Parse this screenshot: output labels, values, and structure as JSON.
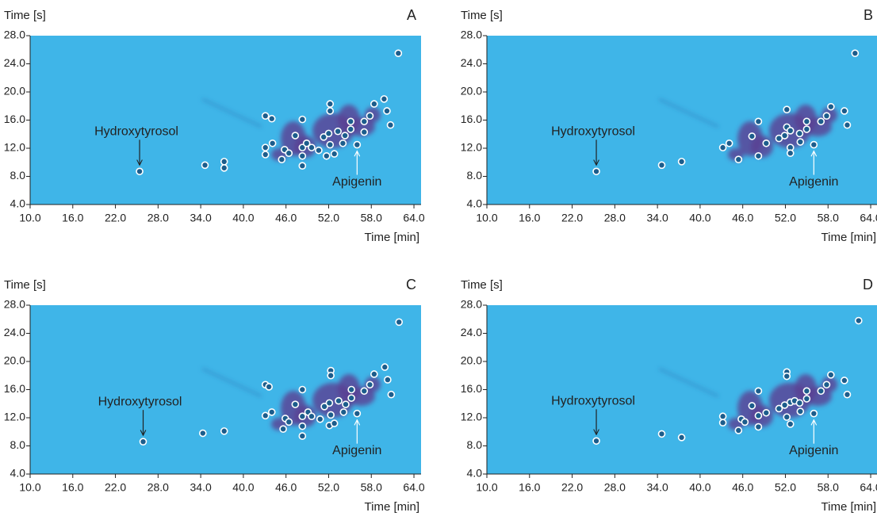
{
  "chart_data": [
    {
      "type": "scatter",
      "title": "A",
      "xlabel": "Time [min]",
      "ylabel": "Time [s]",
      "color": "#ffffff",
      "xlim": [
        10,
        65
      ],
      "ylim": [
        4,
        28
      ],
      "xticks": [
        {
          "value": 10,
          "label": "10.0"
        },
        {
          "value": 16,
          "label": "16.0"
        },
        {
          "value": 22,
          "label": "22.0"
        },
        {
          "value": 28,
          "label": "28.0"
        },
        {
          "value": 34,
          "label": "34.0"
        },
        {
          "value": 40,
          "label": "40.0"
        },
        {
          "value": 46,
          "label": "46.0"
        },
        {
          "value": 52,
          "label": "52.0"
        },
        {
          "value": 58,
          "label": "58.0"
        },
        {
          "value": 64,
          "label": "64.0"
        }
      ],
      "yticks": [
        {
          "value": 4,
          "label": "4.0"
        },
        {
          "value": 8,
          "label": "8.0"
        },
        {
          "value": 12,
          "label": "12.0"
        },
        {
          "value": 16,
          "label": "16.0"
        },
        {
          "value": 20,
          "label": "20.0"
        },
        {
          "value": 24,
          "label": "24.0"
        },
        {
          "value": 28,
          "label": "28.0"
        }
      ],
      "x": [
        25.4,
        34.6,
        37.3,
        37.3,
        43.1,
        44.0,
        43.1,
        43.1,
        44.1,
        45.4,
        45.8,
        46.4,
        47.3,
        48.3,
        48.3,
        48.3,
        48.3,
        48.9,
        49.6,
        50.6,
        51.3,
        52.0,
        52.2,
        52.2,
        51.7,
        52.2,
        52.8,
        53.3,
        54.0,
        54.3,
        55.1,
        55.1,
        56.0,
        57.0,
        57.0,
        57.8,
        58.4,
        59.8,
        60.2,
        60.7,
        61.8
      ],
      "y": [
        8.7,
        9.6,
        10.1,
        9.2,
        16.6,
        16.2,
        12.1,
        11.1,
        12.7,
        10.4,
        11.8,
        11.3,
        13.8,
        16.1,
        12.1,
        10.9,
        9.5,
        12.7,
        12.1,
        11.7,
        13.6,
        14.1,
        18.3,
        17.3,
        10.9,
        12.5,
        11.2,
        14.4,
        12.7,
        13.8,
        15.8,
        14.7,
        12.5,
        14.3,
        15.8,
        16.6,
        18.3,
        19.0,
        17.3,
        15.3,
        25.5
      ],
      "annotations": [
        {
          "text": "Hydroxytyrosol",
          "x": 25.4,
          "y": 8.7
        },
        {
          "text": "Apigenin",
          "x": 56.0,
          "y": 12.5
        }
      ]
    },
    {
      "type": "scatter",
      "title": "B",
      "xlabel": "Time [min]",
      "ylabel": "Time [s]",
      "color": "#ffffff",
      "xlim": [
        10,
        65
      ],
      "ylim": [
        4,
        28
      ],
      "xticks": [
        {
          "value": 10,
          "label": "10.0"
        },
        {
          "value": 16,
          "label": "16.0"
        },
        {
          "value": 22,
          "label": "22.0"
        },
        {
          "value": 28,
          "label": "28.0"
        },
        {
          "value": 34,
          "label": "34.0"
        },
        {
          "value": 40,
          "label": "40.0"
        },
        {
          "value": 46,
          "label": "46.0"
        },
        {
          "value": 52,
          "label": "52.0"
        },
        {
          "value": 58,
          "label": "58.0"
        },
        {
          "value": 64,
          "label": "64.0"
        }
      ],
      "yticks": [
        {
          "value": 4,
          "label": "4.0"
        },
        {
          "value": 8,
          "label": "8.0"
        },
        {
          "value": 12,
          "label": "12.0"
        },
        {
          "value": 16,
          "label": "16.0"
        },
        {
          "value": 20,
          "label": "20.0"
        },
        {
          "value": 24,
          "label": "24.0"
        },
        {
          "value": 28,
          "label": "28.0"
        }
      ],
      "x": [
        25.4,
        34.6,
        37.4,
        43.2,
        44.1,
        45.4,
        47.3,
        48.2,
        48.2,
        49.3,
        51.1,
        51.9,
        52.2,
        52.2,
        52.7,
        52.7,
        52.7,
        54.0,
        54.1,
        55.0,
        55.0,
        56.0,
        57.0,
        57.8,
        58.4,
        60.3,
        60.7,
        61.8
      ],
      "y": [
        8.7,
        9.6,
        10.1,
        12.1,
        12.7,
        10.4,
        13.7,
        15.8,
        10.9,
        12.7,
        13.4,
        13.8,
        17.5,
        15.0,
        14.5,
        12.1,
        11.3,
        14.1,
        12.9,
        14.7,
        15.8,
        12.5,
        15.8,
        16.6,
        17.9,
        17.3,
        15.3,
        25.5
      ],
      "annotations": [
        {
          "text": "Hydroxytyrosol",
          "x": 25.4,
          "y": 8.7
        },
        {
          "text": "Apigenin",
          "x": 56.0,
          "y": 12.5
        }
      ]
    },
    {
      "type": "scatter",
      "title": "C",
      "xlabel": "Time [min]",
      "ylabel": "Time [s]",
      "color": "#ffffff",
      "xlim": [
        10,
        65
      ],
      "ylim": [
        4,
        28
      ],
      "xticks": [
        {
          "value": 10,
          "label": "10.0"
        },
        {
          "value": 16,
          "label": "16.0"
        },
        {
          "value": 22,
          "label": "22.0"
        },
        {
          "value": 28,
          "label": "28.0"
        },
        {
          "value": 34,
          "label": "34.0"
        },
        {
          "value": 40,
          "label": "40.0"
        },
        {
          "value": 46,
          "label": "46.0"
        },
        {
          "value": 52,
          "label": "52.0"
        },
        {
          "value": 58,
          "label": "58.0"
        },
        {
          "value": 64,
          "label": "64.0"
        }
      ],
      "yticks": [
        {
          "value": 4,
          "label": "4.0"
        },
        {
          "value": 8,
          "label": "8.0"
        },
        {
          "value": 12,
          "label": "12.0"
        },
        {
          "value": 16,
          "label": "16.0"
        },
        {
          "value": 20,
          "label": "20.0"
        },
        {
          "value": 24,
          "label": "24.0"
        },
        {
          "value": 28,
          "label": "28.0"
        }
      ],
      "x": [
        25.9,
        34.3,
        37.3,
        43.1,
        43.6,
        43.1,
        44.0,
        45.6,
        45.9,
        46.4,
        47.3,
        48.3,
        48.3,
        48.3,
        48.3,
        49.1,
        49.6,
        50.8,
        51.4,
        52.1,
        52.3,
        52.3,
        52.1,
        52.3,
        52.8,
        53.4,
        54.1,
        54.4,
        55.2,
        55.2,
        56.0,
        57.0,
        57.8,
        58.4,
        59.9,
        60.3,
        60.8,
        61.9
      ],
      "y": [
        8.6,
        9.8,
        10.1,
        16.7,
        16.4,
        12.3,
        12.8,
        10.4,
        11.9,
        11.4,
        13.9,
        16.0,
        12.2,
        10.8,
        9.4,
        12.8,
        12.2,
        11.8,
        13.6,
        14.1,
        18.7,
        18.0,
        10.9,
        12.4,
        11.2,
        14.4,
        12.8,
        13.9,
        16.0,
        14.8,
        12.6,
        15.8,
        16.7,
        18.2,
        19.2,
        17.4,
        15.3,
        25.6
      ],
      "annotations": [
        {
          "text": "Hydroxytyrosol",
          "x": 25.9,
          "y": 8.6
        },
        {
          "text": "Apigenin",
          "x": 56.0,
          "y": 12.6
        }
      ]
    },
    {
      "type": "scatter",
      "title": "D",
      "xlabel": "Time [min]",
      "ylabel": "Time [s]",
      "color": "#ffffff",
      "xlim": [
        10,
        65
      ],
      "ylim": [
        4,
        28
      ],
      "xticks": [
        {
          "value": 10,
          "label": "10.0"
        },
        {
          "value": 16,
          "label": "16.0"
        },
        {
          "value": 22,
          "label": "22.0"
        },
        {
          "value": 28,
          "label": "28.0"
        },
        {
          "value": 34,
          "label": "34.0"
        },
        {
          "value": 40,
          "label": "40.0"
        },
        {
          "value": 46,
          "label": "46.0"
        },
        {
          "value": 52,
          "label": "52.0"
        },
        {
          "value": 58,
          "label": "58.0"
        },
        {
          "value": 64,
          "label": "64.0"
        }
      ],
      "yticks": [
        {
          "value": 4,
          "label": "4.0"
        },
        {
          "value": 8,
          "label": "8.0"
        },
        {
          "value": 12,
          "label": "12.0"
        },
        {
          "value": 16,
          "label": "16.0"
        },
        {
          "value": 20,
          "label": "20.0"
        },
        {
          "value": 24,
          "label": "24.0"
        },
        {
          "value": 28,
          "label": "28.0"
        }
      ],
      "x": [
        25.4,
        34.6,
        37.4,
        43.2,
        43.2,
        45.4,
        45.8,
        46.3,
        47.3,
        48.2,
        48.2,
        48.2,
        49.3,
        51.1,
        51.9,
        52.2,
        52.2,
        52.2,
        52.7,
        52.7,
        53.3,
        54.0,
        54.1,
        55.0,
        55.0,
        56.0,
        57.0,
        57.8,
        58.4,
        60.3,
        60.7,
        62.3
      ],
      "y": [
        8.7,
        9.7,
        9.2,
        12.2,
        11.3,
        10.2,
        11.8,
        11.4,
        13.7,
        15.8,
        12.3,
        10.7,
        12.7,
        13.3,
        13.8,
        18.5,
        17.9,
        12.1,
        14.2,
        11.1,
        14.4,
        14.1,
        12.9,
        14.7,
        15.8,
        12.6,
        15.8,
        16.7,
        18.1,
        17.3,
        15.3,
        25.8
      ],
      "annotations": [
        {
          "text": "Hydroxytyrosol",
          "x": 25.4,
          "y": 8.7
        },
        {
          "text": "Apigenin",
          "x": 56.0,
          "y": 12.6
        }
      ]
    }
  ]
}
